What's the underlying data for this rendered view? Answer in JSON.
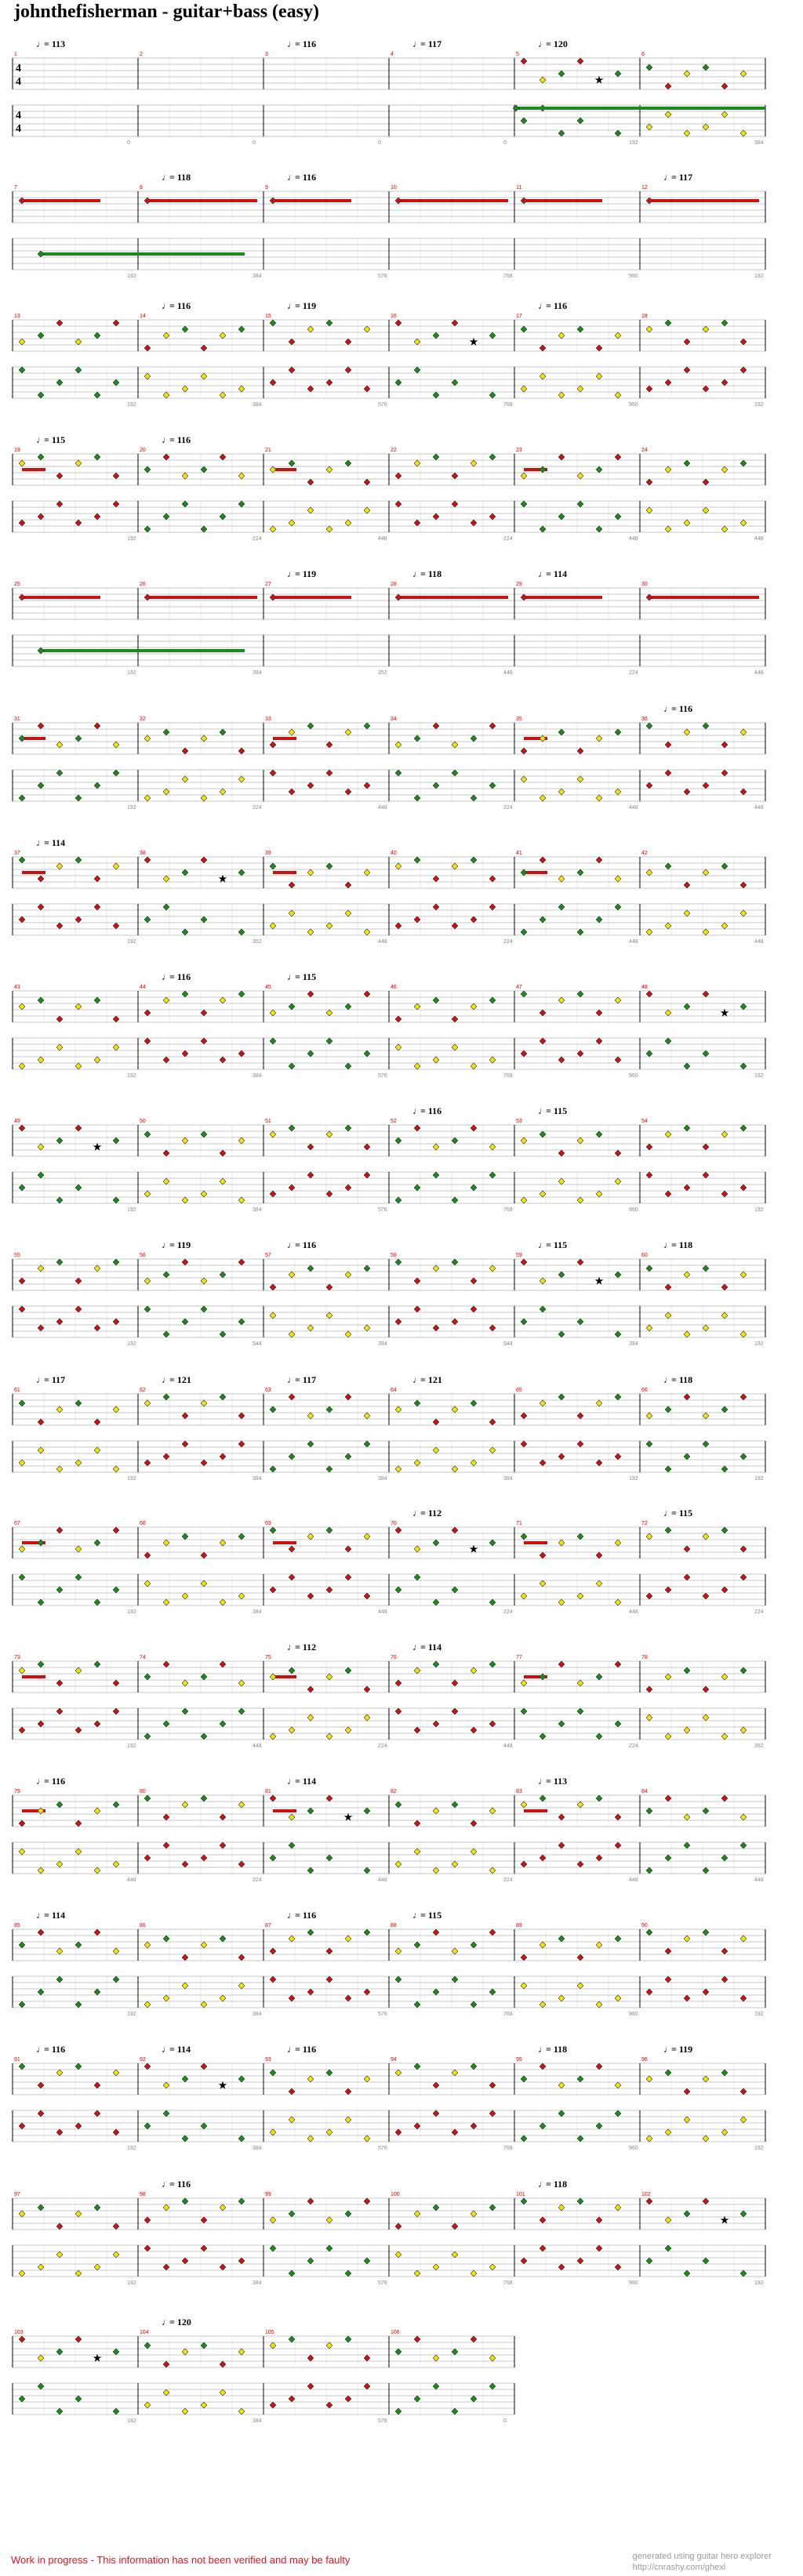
{
  "title": "johnthefisherman - guitar+bass (easy)",
  "footer": {
    "warning": "Work in progress - This information has not been verified and may be faulty",
    "credit_line1": "generated using guitar hero explorer",
    "credit_line2": "http://cnrashy.com/ghexl"
  },
  "time_signature": "4/4",
  "colors": {
    "green": "#1a8a1a",
    "red": "#cc1111",
    "yellow": "#f2e600",
    "staff": "#b5b5b5",
    "barline": "#000000"
  },
  "systems": [
    {
      "tempos": [
        {
          "m": 0,
          "v": "113"
        },
        {
          "m": 2,
          "v": "116"
        },
        {
          "m": 3,
          "v": "117"
        },
        {
          "m": 4,
          "v": "120"
        }
      ],
      "measures": [
        "1",
        "2",
        "3",
        "4",
        "5",
        "6"
      ],
      "ticks": [
        "",
        "0",
        "0",
        "0",
        "0",
        "192",
        "384"
      ],
      "pattern": "intro"
    },
    {
      "tempos": [
        {
          "m": 1,
          "v": "118"
        },
        {
          "m": 2,
          "v": "116"
        },
        {
          "m": 5,
          "v": "117"
        }
      ],
      "measures": [
        "7",
        "8",
        "9",
        "10",
        "11",
        "12"
      ],
      "ticks": [
        "",
        "192",
        "384",
        "576",
        "768",
        "960",
        "192"
      ],
      "pattern": "sustain"
    },
    {
      "tempos": [
        {
          "m": 1,
          "v": "116"
        },
        {
          "m": 2,
          "v": "119"
        },
        {
          "m": 4,
          "v": "116"
        }
      ],
      "measures": [
        "13",
        "14",
        "15",
        "16",
        "17",
        "18"
      ],
      "ticks": [
        "",
        "192",
        "384",
        "576",
        "768",
        "960",
        "192"
      ],
      "pattern": "dots"
    },
    {
      "tempos": [
        {
          "m": 0,
          "v": "115"
        },
        {
          "m": 1,
          "v": "116"
        }
      ],
      "measures": [
        "19",
        "20",
        "21",
        "22",
        "23",
        "24"
      ],
      "ticks": [
        "",
        "192",
        "224",
        "448",
        "224",
        "448",
        "448"
      ],
      "pattern": "mixed"
    },
    {
      "tempos": [
        {
          "m": 2,
          "v": "119"
        },
        {
          "m": 3,
          "v": "118"
        },
        {
          "m": 4,
          "v": "114"
        }
      ],
      "measures": [
        "25",
        "26",
        "27",
        "28",
        "29",
        "30"
      ],
      "ticks": [
        "",
        "192",
        "384",
        "352",
        "448",
        "224",
        "448"
      ],
      "pattern": "sustain2"
    },
    {
      "tempos": [
        {
          "m": 5,
          "v": "116"
        }
      ],
      "measures": [
        "31",
        "32",
        "33",
        "34",
        "35",
        "36"
      ],
      "ticks": [
        "",
        "192",
        "224",
        "448",
        "224",
        "448",
        "448"
      ],
      "pattern": "mixed"
    },
    {
      "tempos": [
        {
          "m": 0,
          "v": "114"
        }
      ],
      "measures": [
        "37",
        "38",
        "39",
        "40",
        "41",
        "42"
      ],
      "ticks": [
        "",
        "192",
        "352",
        "448",
        "224",
        "448",
        "448"
      ],
      "pattern": "mixed"
    },
    {
      "tempos": [
        {
          "m": 1,
          "v": "116"
        },
        {
          "m": 2,
          "v": "115"
        }
      ],
      "measures": [
        "43",
        "44",
        "45",
        "46",
        "47",
        "48"
      ],
      "ticks": [
        "",
        "192",
        "384",
        "576",
        "768",
        "960",
        "192"
      ],
      "pattern": "dots"
    },
    {
      "tempos": [
        {
          "m": 3,
          "v": "116"
        },
        {
          "m": 4,
          "v": "115"
        }
      ],
      "measures": [
        "49",
        "50",
        "51",
        "52",
        "53",
        "54"
      ],
      "ticks": [
        "",
        "192",
        "384",
        "576",
        "768",
        "960",
        "192"
      ],
      "pattern": "dots"
    },
    {
      "tempos": [
        {
          "m": 1,
          "v": "119"
        },
        {
          "m": 2,
          "v": "116"
        },
        {
          "m": 4,
          "v": "115"
        },
        {
          "m": 5,
          "v": "118"
        }
      ],
      "measures": [
        "55",
        "56",
        "57",
        "58",
        "59",
        "60"
      ],
      "ticks": [
        "",
        "192",
        "544",
        "384",
        "544",
        "384",
        "192"
      ],
      "pattern": "dots"
    },
    {
      "tempos": [
        {
          "m": 0,
          "v": "117"
        },
        {
          "m": 1,
          "v": "121"
        },
        {
          "m": 2,
          "v": "117"
        },
        {
          "m": 3,
          "v": "121"
        },
        {
          "m": 5,
          "v": "118"
        }
      ],
      "measures": [
        "61",
        "62",
        "63",
        "64",
        "65",
        "66"
      ],
      "ticks": [
        "",
        "192",
        "384",
        "384",
        "384",
        "192",
        "192"
      ],
      "pattern": "tsys"
    },
    {
      "tempos": [
        {
          "m": 3,
          "v": "112"
        },
        {
          "m": 5,
          "v": "115"
        }
      ],
      "measures": [
        "67",
        "68",
        "69",
        "70",
        "71",
        "72"
      ],
      "ticks": [
        "",
        "192",
        "384",
        "448",
        "224",
        "448",
        "224"
      ],
      "pattern": "mixed"
    },
    {
      "tempos": [
        {
          "m": 2,
          "v": "112"
        },
        {
          "m": 3,
          "v": "114"
        }
      ],
      "measures": [
        "73",
        "74",
        "75",
        "76",
        "77",
        "78"
      ],
      "ticks": [
        "",
        "192",
        "448",
        "224",
        "448",
        "224",
        "352"
      ],
      "pattern": "mixed"
    },
    {
      "tempos": [
        {
          "m": 0,
          "v": "116"
        },
        {
          "m": 2,
          "v": "114"
        },
        {
          "m": 4,
          "v": "113"
        }
      ],
      "measures": [
        "79",
        "80",
        "81",
        "82",
        "83",
        "84"
      ],
      "ticks": [
        "",
        "448",
        "224",
        "448",
        "224",
        "448",
        "448"
      ],
      "pattern": "mixed"
    },
    {
      "tempos": [
        {
          "m": 0,
          "v": "114"
        },
        {
          "m": 2,
          "v": "116"
        },
        {
          "m": 3,
          "v": "115"
        }
      ],
      "measures": [
        "85",
        "86",
        "87",
        "88",
        "89",
        "90"
      ],
      "ticks": [
        "",
        "192",
        "384",
        "576",
        "768",
        "960",
        "192"
      ],
      "pattern": "dots"
    },
    {
      "tempos": [
        {
          "m": 0,
          "v": "116"
        },
        {
          "m": 1,
          "v": "114"
        },
        {
          "m": 2,
          "v": "116"
        },
        {
          "m": 4,
          "v": "118"
        },
        {
          "m": 5,
          "v": "119"
        }
      ],
      "measures": [
        "91",
        "92",
        "93",
        "94",
        "95",
        "96"
      ],
      "ticks": [
        "",
        "192",
        "384",
        "576",
        "768",
        "960",
        "192"
      ],
      "pattern": "dots"
    },
    {
      "tempos": [
        {
          "m": 1,
          "v": "116"
        },
        {
          "m": 4,
          "v": "118"
        }
      ],
      "measures": [
        "97",
        "98",
        "99",
        "100",
        "101",
        "102"
      ],
      "ticks": [
        "",
        "192",
        "384",
        "576",
        "768",
        "960",
        "192"
      ],
      "pattern": "dots"
    },
    {
      "tempos": [
        {
          "m": 1,
          "v": "120"
        }
      ],
      "measures": [
        "103",
        "104",
        "105",
        "106"
      ],
      "ticks": [
        "",
        "192",
        "384",
        "576",
        "0"
      ],
      "pattern": "dots"
    }
  ]
}
